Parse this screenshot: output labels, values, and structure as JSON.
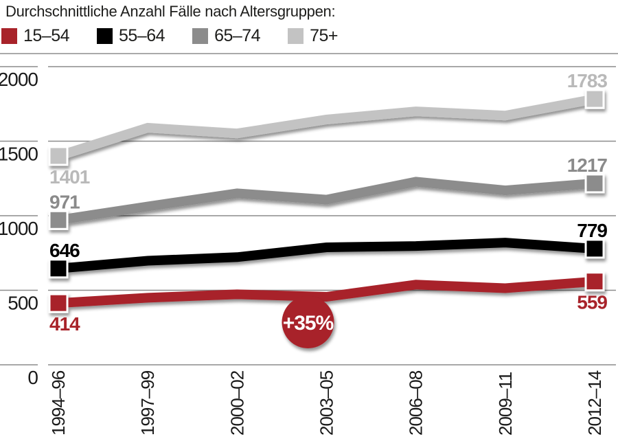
{
  "title": "Durchschnittliche Anzahl Fälle nach Altersgruppen:",
  "legend": [
    {
      "label": "15–54",
      "color": "#a8232a"
    },
    {
      "label": "55–64",
      "color": "#000000"
    },
    {
      "label": "65–74",
      "color": "#8c8c8c"
    },
    {
      "label": "75+",
      "color": "#c3c3c3"
    }
  ],
  "chart_data": {
    "type": "line",
    "title": "Durchschnittliche Anzahl Fälle nach Altersgruppen:",
    "categories": [
      "1994–96",
      "1997–99",
      "2000–02",
      "2003–05",
      "2006–08",
      "2009–11",
      "2012–14"
    ],
    "yticks": [
      2000,
      1500,
      1000,
      500,
      0
    ],
    "ylim": [
      0,
      2000
    ],
    "grid": "on",
    "legend_position": "top",
    "axis_color": "#1a1a1a",
    "grid_color": "#8c8c8c",
    "series": [
      {
        "key": "age-75-plus",
        "name": "75+",
        "color": "#c3c3c3",
        "label_color": "#b9b9b9",
        "values": [
          1401,
          1590,
          1552,
          1645,
          1700,
          1672,
          1783
        ],
        "start_label": "1401",
        "end_label": "1783",
        "start_label_pos": "below",
        "end_label_pos": "above"
      },
      {
        "key": "age-65-74",
        "name": "65–74",
        "color": "#8c8c8c",
        "label_color": "#8a8a8a",
        "values": [
          971,
          1062,
          1150,
          1108,
          1228,
          1170,
          1217
        ],
        "start_label": "971",
        "end_label": "1217",
        "start_label_pos": "above",
        "end_label_pos": "above"
      },
      {
        "key": "age-55-64",
        "name": "55–64",
        "color": "#000000",
        "label_color": "#000000",
        "values": [
          646,
          698,
          722,
          788,
          797,
          820,
          779
        ],
        "start_label": "646",
        "end_label": "779",
        "start_label_pos": "above",
        "end_label_pos": "above"
      },
      {
        "key": "age-15-54",
        "name": "15–54",
        "color": "#a8232a",
        "label_color": "#a8232a",
        "values": [
          414,
          450,
          473,
          456,
          538,
          514,
          559
        ],
        "start_label": "414",
        "end_label": "559",
        "start_label_pos": "below",
        "end_label_pos": "below"
      }
    ],
    "annotation": {
      "text": "+35%",
      "series": "15–54",
      "category_index": 3,
      "color": "#a8232a",
      "text_color": "#ffffff"
    }
  }
}
